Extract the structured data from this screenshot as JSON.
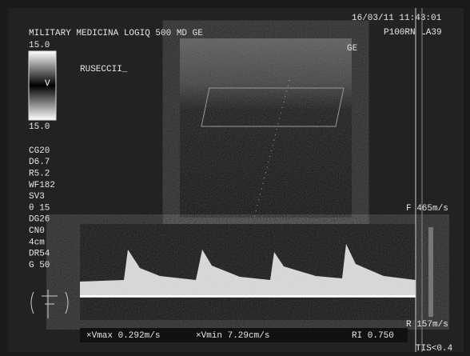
{
  "header": {
    "title": "MILITARY MEDICINA LOGIQ 500 MD GE",
    "datetime": "16/03/11 11:43:01",
    "probe": "P100RN  LA39"
  },
  "scale": {
    "top": "15.0",
    "mid": "V",
    "bottom": "15.0"
  },
  "patient": "RUSECCII_",
  "image_label": "GE",
  "params": [
    "CG20",
    "D6.7",
    "R5.2",
    "WF182",
    "SV3",
    "θ 15",
    "DG26",
    "CN0",
    "4cm",
    "DR54",
    "G 50"
  ],
  "doppler": {
    "forward": "F 465m/s",
    "reverse": "R 157m/s"
  },
  "measurements": {
    "vmax": "×Vmax 0.292m/s",
    "vmin": "×Vmin 7.29cm/s",
    "ri": "RI 0.750"
  },
  "tis": "TIS<0.4"
}
